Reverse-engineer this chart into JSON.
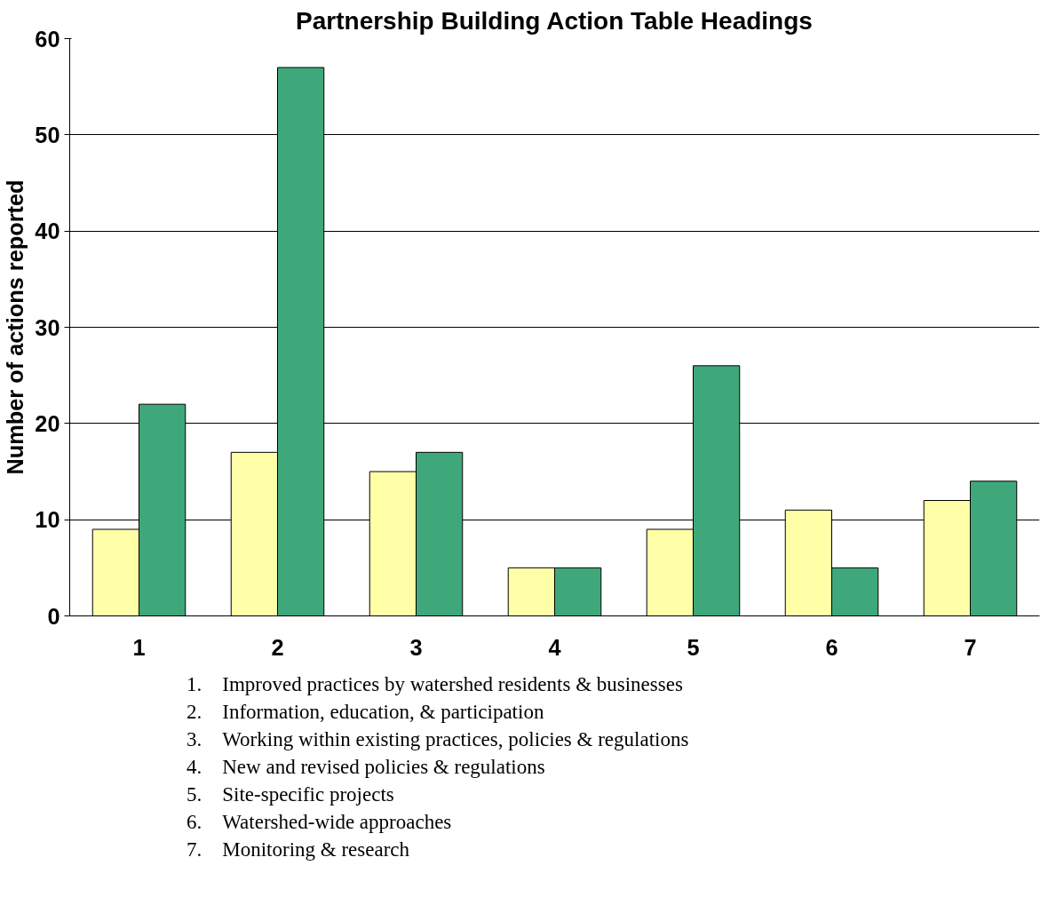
{
  "chart_data": {
    "type": "bar",
    "title": "Partnership Building Action Table Headings",
    "ylabel": "Number of actions reported",
    "categories": [
      "1",
      "2",
      "3",
      "4",
      "5",
      "6",
      "7"
    ],
    "series": [
      {
        "color": "#ffffa8",
        "values": [
          9,
          17,
          15,
          5,
          9,
          11,
          12
        ]
      },
      {
        "color": "#3ea87a",
        "values": [
          22,
          57,
          17,
          5,
          26,
          5,
          14
        ]
      }
    ],
    "ylim": [
      0,
      60
    ],
    "yticks": [
      0,
      10,
      20,
      30,
      40,
      50,
      60
    ],
    "grid": "y",
    "annotations": [
      "1.    Improved practices by watershed residents & businesses",
      "2.    Information, education, & participation",
      "3.    Working within existing practices, policies & regulations",
      "4.    New and revised policies & regulations",
      "5.    Site-specific projects",
      "6.    Watershed-wide approaches",
      "7.    Monitoring & research"
    ]
  }
}
